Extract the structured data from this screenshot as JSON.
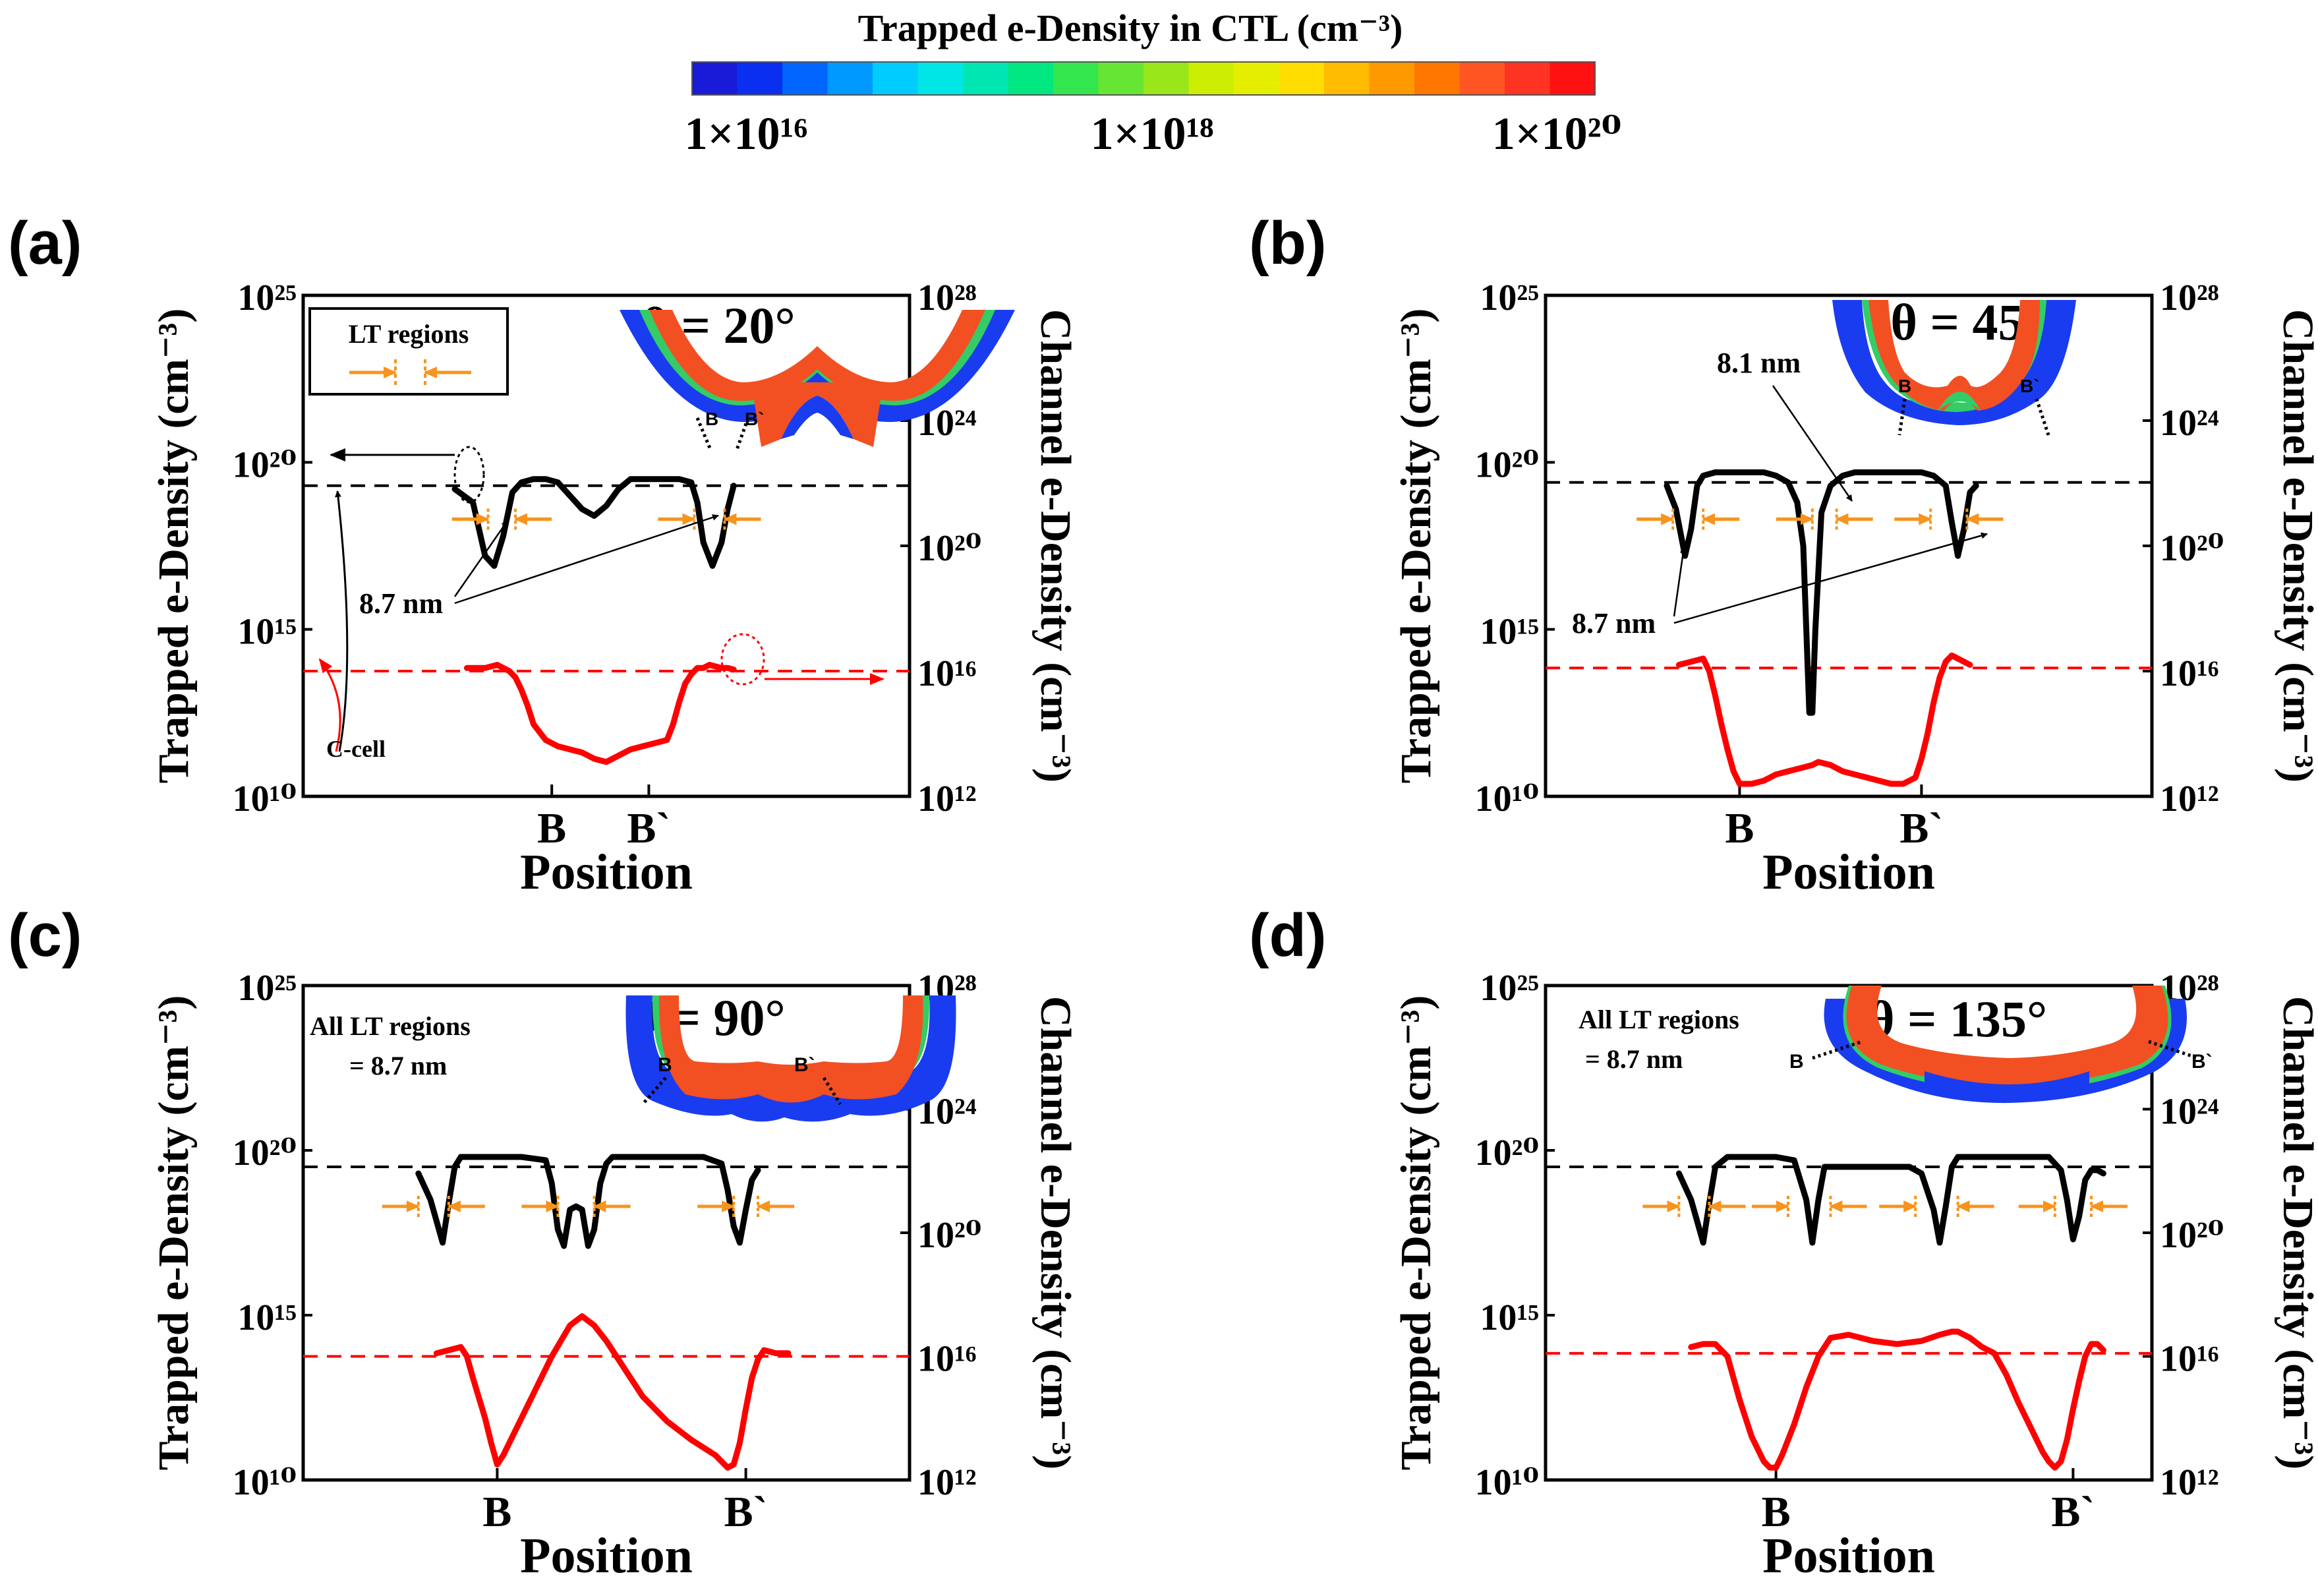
{
  "colorbar": {
    "title": "Trapped e-Density in CTL (cm⁻³)",
    "labels": [
      "1×10¹⁶",
      "1×10¹⁸",
      "1×10²⁰"
    ],
    "colors": [
      "#1a1ad9",
      "#0a2ff0",
      "#0066ff",
      "#0099ff",
      "#00ccff",
      "#00e6e6",
      "#00e6b3",
      "#00e680",
      "#33e64d",
      "#66e633",
      "#99e61a",
      "#ccee00",
      "#e6ee00",
      "#ffdd00",
      "#ffbb00",
      "#ff9900",
      "#ff7700",
      "#ff5522",
      "#ff3322",
      "#ff1111"
    ]
  },
  "chart_data": [
    {
      "type": "line",
      "panel_label": "(a)",
      "theta": "θ = 20°",
      "xlabel": "Position",
      "ylabel_left": "Trapped e-Density (cm⁻³)",
      "ylabel_right": "Channel e-Density (cm⁻³)",
      "left_axis": {
        "scale": "log",
        "range_exp": [
          10,
          25
        ],
        "ticks": [
          "10¹⁰",
          "10¹⁵",
          "10²⁰",
          "10²⁵"
        ]
      },
      "right_axis": {
        "scale": "log",
        "range_exp": [
          12,
          28
        ],
        "ticks": [
          "10¹²",
          "10¹⁶",
          "10²⁰",
          "10²⁴",
          "10²⁸"
        ]
      },
      "x_range": [
        0,
        100
      ],
      "x_ticks": [
        {
          "x": 41,
          "label": "B"
        },
        {
          "x": 57,
          "label": "B`"
        }
      ],
      "reference_lines": [
        {
          "axis": "left",
          "value_exp": 19.3,
          "color": "#000000",
          "style": "dashed"
        },
        {
          "axis": "right",
          "value_exp": 16.0,
          "color": "#ff0000",
          "style": "dashed"
        }
      ],
      "series": [
        {
          "name": "Trapped e-Density in CTL",
          "axis": "left",
          "color": "#000000",
          "x": [
            25,
            28,
            30,
            31.5,
            33,
            34.5,
            36,
            38,
            40,
            42,
            44,
            46,
            48,
            50,
            52,
            54,
            56,
            58,
            60,
            62,
            64,
            65,
            66,
            67.5,
            69,
            70,
            71
          ],
          "y_exp": [
            19.2,
            18.8,
            17.2,
            16.9,
            17.8,
            19.1,
            19.4,
            19.5,
            19.5,
            19.4,
            19.0,
            18.6,
            18.4,
            18.7,
            19.2,
            19.5,
            19.5,
            19.5,
            19.5,
            19.5,
            19.4,
            18.8,
            17.6,
            16.9,
            17.6,
            18.6,
            19.3
          ]
        },
        {
          "name": "Channel e-Density",
          "axis": "right",
          "color": "#ff0000",
          "x": [
            27,
            28,
            30,
            32,
            33,
            34,
            35,
            36,
            37,
            38,
            40,
            42,
            44,
            46,
            48,
            50,
            52,
            54,
            56,
            58,
            60,
            61,
            62,
            63,
            64,
            65,
            66,
            67,
            68,
            69,
            70,
            71
          ],
          "y_exp": [
            16.1,
            16.1,
            16.1,
            16.2,
            16.1,
            16.0,
            15.8,
            15.4,
            14.9,
            14.3,
            13.8,
            13.6,
            13.5,
            13.4,
            13.2,
            13.1,
            13.3,
            13.5,
            13.6,
            13.7,
            13.8,
            14.3,
            15.0,
            15.6,
            15.9,
            16.1,
            16.1,
            16.2,
            16.15,
            16.1,
            16.1,
            16.05
          ]
        }
      ],
      "annotations": {
        "legend_title": "LT regions",
        "measure_label": "8.7 nm",
        "cell_label": "C-cell",
        "lt_arrow_pairs_x": [
          [
            30.5,
            35
          ],
          [
            64.5,
            69.5
          ]
        ],
        "inset_labels": [
          "B",
          "B`"
        ]
      }
    },
    {
      "type": "line",
      "panel_label": "(b)",
      "theta": "θ = 45°",
      "xlabel": "Position",
      "ylabel_left": "Trapped e-Density (cm⁻³)",
      "ylabel_right": "Channel e-Density (cm⁻³)",
      "left_axis": {
        "scale": "log",
        "range_exp": [
          10,
          25
        ],
        "ticks": [
          "10¹⁰",
          "10¹⁵",
          "10²⁰",
          "10²⁵"
        ]
      },
      "right_axis": {
        "scale": "log",
        "range_exp": [
          12,
          28
        ],
        "ticks": [
          "10¹²",
          "10¹⁶",
          "10²⁰",
          "10²⁴",
          "10²⁸"
        ]
      },
      "x_range": [
        0,
        100
      ],
      "x_ticks": [
        {
          "x": 32,
          "label": "B"
        },
        {
          "x": 62,
          "label": "B`"
        }
      ],
      "reference_lines": [
        {
          "axis": "left",
          "value_exp": 19.4,
          "color": "#000000",
          "style": "dashed"
        },
        {
          "axis": "right",
          "value_exp": 16.1,
          "color": "#ff0000",
          "style": "dashed"
        }
      ],
      "series": [
        {
          "name": "Trapped e-Density in CTL",
          "axis": "left",
          "color": "#000000",
          "x": [
            20,
            21.5,
            23,
            24,
            25,
            26,
            28,
            30,
            32,
            34,
            36,
            38,
            40,
            41.5,
            42.5,
            43,
            43.5,
            44,
            44.5,
            45.5,
            47,
            49,
            51,
            54,
            57,
            60,
            62,
            64,
            66,
            67,
            68,
            69,
            70,
            71
          ],
          "y_exp": [
            19.3,
            18.6,
            17.2,
            18.0,
            19.3,
            19.6,
            19.7,
            19.7,
            19.7,
            19.7,
            19.7,
            19.6,
            19.4,
            18.8,
            17.5,
            15.0,
            12.5,
            12.5,
            15.0,
            18.5,
            19.3,
            19.6,
            19.7,
            19.7,
            19.7,
            19.7,
            19.7,
            19.6,
            19.3,
            18.2,
            17.2,
            18.0,
            19.1,
            19.3
          ]
        },
        {
          "name": "Channel e-Density",
          "axis": "right",
          "color": "#ff0000",
          "x": [
            22,
            24,
            26,
            27,
            28,
            29,
            30,
            31,
            32,
            34,
            36,
            38,
            40,
            42,
            44,
            45,
            47,
            49,
            51,
            53,
            55,
            57,
            59,
            61,
            62,
            63,
            64,
            65,
            66,
            67,
            68,
            69,
            70
          ],
          "y_exp": [
            16.2,
            16.3,
            16.4,
            16.0,
            15.2,
            14.3,
            13.5,
            12.8,
            12.4,
            12.4,
            12.5,
            12.7,
            12.8,
            12.9,
            13.0,
            13.1,
            13.0,
            12.8,
            12.7,
            12.6,
            12.5,
            12.4,
            12.4,
            12.6,
            13.2,
            14.0,
            15.0,
            15.8,
            16.3,
            16.5,
            16.4,
            16.3,
            16.2
          ]
        }
      ],
      "annotations": {
        "measure_label_1": "8.1 nm",
        "measure_label_2": "8.7 nm",
        "lt_arrow_pairs_x": [
          [
            21,
            26
          ],
          [
            44,
            48
          ],
          [
            63.5,
            69.5
          ]
        ],
        "inset_labels": [
          "B",
          "B`"
        ]
      }
    },
    {
      "type": "line",
      "panel_label": "(c)",
      "theta": "θ = 90°",
      "xlabel": "Position",
      "ylabel_left": "Trapped e-Density (cm⁻³)",
      "ylabel_right": "Channel e-Density (cm⁻³)",
      "left_axis": {
        "scale": "log",
        "range_exp": [
          10,
          25
        ],
        "ticks": [
          "10¹⁰",
          "10¹⁵",
          "10²⁰",
          "10²⁵"
        ]
      },
      "right_axis": {
        "scale": "log",
        "range_exp": [
          12,
          28
        ],
        "ticks": [
          "10¹²",
          "10¹⁶",
          "10²⁰",
          "10²⁴",
          "10²⁸"
        ]
      },
      "x_range": [
        0,
        100
      ],
      "x_ticks": [
        {
          "x": 32,
          "label": "B"
        },
        {
          "x": 73,
          "label": "B`"
        }
      ],
      "reference_lines": [
        {
          "axis": "left",
          "value_exp": 19.5,
          "color": "#000000",
          "style": "dashed"
        },
        {
          "axis": "right",
          "value_exp": 16.0,
          "color": "#ff0000",
          "style": "dashed"
        }
      ],
      "series": [
        {
          "name": "Trapped e-Density in CTL",
          "axis": "left",
          "color": "#000000",
          "x": [
            19,
            21,
            23,
            24,
            25,
            26,
            28,
            32,
            36,
            40,
            41,
            42,
            43,
            44,
            45,
            46,
            47,
            48,
            49,
            50,
            51,
            53,
            55,
            58,
            62,
            66,
            69,
            70,
            71,
            72,
            73,
            74,
            75
          ],
          "y_exp": [
            19.3,
            18.5,
            17.2,
            18.4,
            19.5,
            19.8,
            19.8,
            19.8,
            19.8,
            19.7,
            19.0,
            17.6,
            17.1,
            18.2,
            18.3,
            18.2,
            17.1,
            17.6,
            19.0,
            19.6,
            19.8,
            19.8,
            19.8,
            19.8,
            19.8,
            19.8,
            19.6,
            18.8,
            17.7,
            17.2,
            18.2,
            19.1,
            19.4
          ]
        },
        {
          "name": "Channel e-Density",
          "axis": "right",
          "color": "#ff0000",
          "x": [
            22,
            24,
            26,
            27,
            28,
            30,
            31,
            32,
            33,
            35,
            38,
            41,
            44,
            46,
            48,
            50,
            53,
            56,
            60,
            64,
            68,
            70,
            71,
            72,
            73,
            74,
            75,
            76,
            78,
            80
          ],
          "y_exp": [
            16.1,
            16.2,
            16.3,
            16.0,
            15.3,
            14.0,
            13.2,
            12.5,
            12.8,
            13.6,
            14.8,
            16.0,
            17.0,
            17.3,
            17.0,
            16.5,
            15.6,
            14.7,
            13.9,
            13.3,
            12.8,
            12.4,
            12.5,
            13.2,
            14.3,
            15.3,
            15.9,
            16.2,
            16.1,
            16.1
          ]
        }
      ],
      "annotations": {
        "note_line1": "All LT regions",
        "note_line2": "= 8.7 nm",
        "lt_arrow_pairs_x": [
          [
            19,
            24
          ],
          [
            42,
            48
          ],
          [
            71,
            75
          ]
        ],
        "inset_labels": [
          "B",
          "B`"
        ]
      }
    },
    {
      "type": "line",
      "panel_label": "(d)",
      "theta": "θ = 135°",
      "xlabel": "Position",
      "ylabel_left": "Trapped e-Density (cm⁻³)",
      "ylabel_right": "Channel e-Density (cm⁻³)",
      "left_axis": {
        "scale": "log",
        "range_exp": [
          10,
          25
        ],
        "ticks": [
          "10¹⁰",
          "10¹⁵",
          "10²⁰",
          "10²⁵"
        ]
      },
      "right_axis": {
        "scale": "log",
        "range_exp": [
          12,
          28
        ],
        "ticks": [
          "10¹²",
          "10¹⁶",
          "10²⁰",
          "10²⁴",
          "10²⁸"
        ]
      },
      "x_range": [
        0,
        100
      ],
      "x_ticks": [
        {
          "x": 38,
          "label": "B"
        },
        {
          "x": 87,
          "label": "B`"
        }
      ],
      "reference_lines": [
        {
          "axis": "left",
          "value_exp": 19.5,
          "color": "#000000",
          "style": "dashed"
        },
        {
          "axis": "right",
          "value_exp": 16.1,
          "color": "#ff0000",
          "style": "dashed"
        }
      ],
      "series": [
        {
          "name": "Trapped e-Density in CTL",
          "axis": "left",
          "color": "#000000",
          "x": [
            22,
            24,
            26,
            27,
            28,
            30,
            34,
            38,
            41,
            43,
            44,
            45,
            46,
            48,
            52,
            56,
            60,
            62,
            64,
            65,
            66,
            67,
            68,
            70,
            74,
            78,
            83,
            85,
            86,
            87,
            88,
            89,
            90,
            91,
            92
          ],
          "y_exp": [
            19.3,
            18.5,
            17.2,
            18.4,
            19.5,
            19.8,
            19.8,
            19.8,
            19.7,
            18.5,
            17.2,
            18.5,
            19.5,
            19.5,
            19.5,
            19.5,
            19.5,
            19.3,
            18.2,
            17.2,
            18.3,
            19.5,
            19.8,
            19.8,
            19.8,
            19.8,
            19.8,
            19.4,
            18.5,
            17.3,
            18.0,
            19.1,
            19.4,
            19.4,
            19.3
          ]
        },
        {
          "name": "Channel e-Density",
          "axis": "right",
          "color": "#ff0000",
          "x": [
            24,
            26,
            28,
            30,
            31,
            32,
            34,
            36,
            37,
            38,
            39,
            41,
            43,
            45,
            47,
            50,
            54,
            58,
            62,
            65,
            67,
            68,
            70,
            72,
            74,
            76,
            78,
            80,
            81,
            82,
            83,
            84,
            85,
            86,
            87,
            88,
            89,
            90,
            91,
            92
          ],
          "y_exp": [
            16.3,
            16.4,
            16.4,
            16.0,
            15.3,
            14.6,
            13.4,
            12.6,
            12.4,
            12.4,
            12.8,
            13.8,
            15.0,
            16.0,
            16.6,
            16.7,
            16.5,
            16.4,
            16.5,
            16.7,
            16.8,
            16.8,
            16.6,
            16.3,
            16.1,
            15.4,
            14.5,
            13.7,
            13.3,
            12.9,
            12.6,
            12.4,
            12.6,
            13.3,
            14.3,
            15.2,
            16.0,
            16.4,
            16.4,
            16.2
          ]
        }
      ],
      "annotations": {
        "note_line1": "All LT regions",
        "note_line2": "= 8.7 nm",
        "lt_arrow_pairs_x": [
          [
            22,
            27
          ],
          [
            40,
            47
          ],
          [
            61,
            68
          ],
          [
            84,
            90
          ]
        ],
        "inset_labels": [
          "B",
          "B`"
        ]
      }
    }
  ]
}
